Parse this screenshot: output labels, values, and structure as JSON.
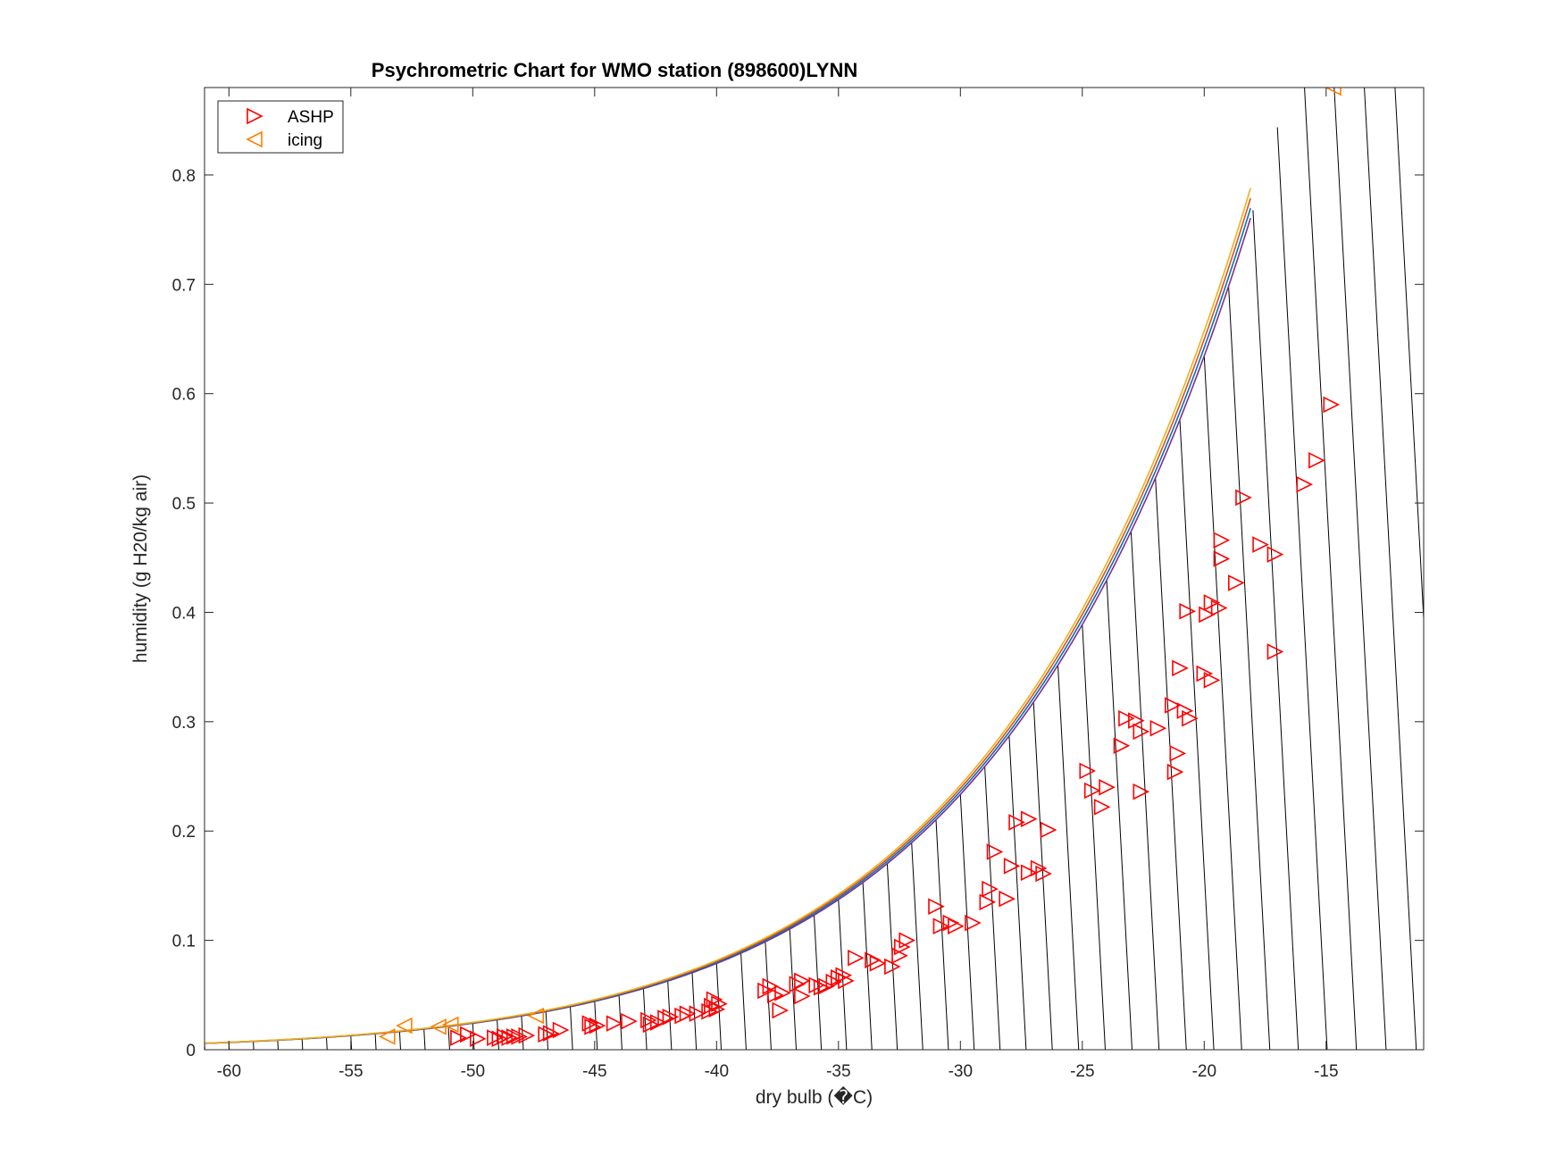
{
  "chart_data": {
    "type": "scatter",
    "title": "Psychrometric Chart for WMO station (898600)LYNN",
    "xlabel": "dry bulb (�C)",
    "ylabel": "humidity (g H20/kg air)",
    "xlim": [
      -61,
      -11
    ],
    "ylim": [
      0,
      0.88
    ],
    "xticks": [
      -60,
      -55,
      -50,
      -45,
      -40,
      -35,
      -30,
      -25,
      -20,
      -15
    ],
    "yticks": [
      0,
      0.1,
      0.2,
      0.3,
      0.4,
      0.5,
      0.6,
      0.7,
      0.8
    ],
    "xtick_labels": [
      "-60",
      "-55",
      "-50",
      "-45",
      "-40",
      "-35",
      "-30",
      "-25",
      "-20",
      "-15"
    ],
    "ytick_labels": [
      "0",
      "0.1",
      "0.2",
      "0.3",
      "0.4",
      "0.5",
      "0.6",
      "0.7",
      "0.8"
    ],
    "grid": false,
    "legend_position": "top-left",
    "saturation_curve": {
      "description_units": "humidity at saturation vs dry bulb",
      "colors": [
        "#7e2f8e",
        "#0072bd",
        "#d95319",
        "#edb120"
      ]
    },
    "series": [
      {
        "name": "ASHP",
        "marker": "triangle-right",
        "color": "#ff0000",
        "points": [
          [
            -50.6,
            0.011
          ],
          [
            -50.2,
            0.014
          ],
          [
            -49.8,
            0.01
          ],
          [
            -49.1,
            0.011
          ],
          [
            -48.9,
            0.01
          ],
          [
            -48.7,
            0.012
          ],
          [
            -48.5,
            0.011
          ],
          [
            -48.3,
            0.012
          ],
          [
            -48.1,
            0.012
          ],
          [
            -47.8,
            0.013
          ],
          [
            -47.0,
            0.014
          ],
          [
            -46.8,
            0.015
          ],
          [
            -46.4,
            0.018
          ],
          [
            -45.2,
            0.024
          ],
          [
            -45.1,
            0.021
          ],
          [
            -44.9,
            0.022
          ],
          [
            -44.2,
            0.024
          ],
          [
            -43.6,
            0.026
          ],
          [
            -42.8,
            0.027
          ],
          [
            -42.7,
            0.023
          ],
          [
            -42.4,
            0.025
          ],
          [
            -42.1,
            0.029
          ],
          [
            -41.9,
            0.03
          ],
          [
            -41.4,
            0.031
          ],
          [
            -41.2,
            0.033
          ],
          [
            -40.8,
            0.033
          ],
          [
            -40.3,
            0.035
          ],
          [
            -40.2,
            0.04
          ],
          [
            -40.1,
            0.046
          ],
          [
            -40.0,
            0.037
          ],
          [
            -39.9,
            0.042
          ],
          [
            -38.0,
            0.054
          ],
          [
            -37.8,
            0.058
          ],
          [
            -37.6,
            0.05
          ],
          [
            -37.4,
            0.036
          ],
          [
            -37.3,
            0.052
          ],
          [
            -36.7,
            0.06
          ],
          [
            -36.5,
            0.063
          ],
          [
            -36.5,
            0.049
          ],
          [
            -35.9,
            0.059
          ],
          [
            -35.7,
            0.057
          ],
          [
            -35.5,
            0.058
          ],
          [
            -35.2,
            0.062
          ],
          [
            -35.0,
            0.066
          ],
          [
            -34.8,
            0.068
          ],
          [
            -34.7,
            0.063
          ],
          [
            -34.3,
            0.084
          ],
          [
            -33.6,
            0.082
          ],
          [
            -33.4,
            0.079
          ],
          [
            -32.8,
            0.076
          ],
          [
            -32.5,
            0.086
          ],
          [
            -32.4,
            0.094
          ],
          [
            -32.2,
            0.1
          ],
          [
            -31.0,
            0.131
          ],
          [
            -30.8,
            0.113
          ],
          [
            -30.4,
            0.116
          ],
          [
            -30.2,
            0.113
          ],
          [
            -29.5,
            0.116
          ],
          [
            -28.9,
            0.135
          ],
          [
            -28.8,
            0.147
          ],
          [
            -28.6,
            0.181
          ],
          [
            -28.1,
            0.138
          ],
          [
            -27.9,
            0.168
          ],
          [
            -27.7,
            0.208
          ],
          [
            -27.2,
            0.211
          ],
          [
            -27.2,
            0.162
          ],
          [
            -26.8,
            0.166
          ],
          [
            -26.6,
            0.161
          ],
          [
            -26.4,
            0.201
          ],
          [
            -24.8,
            0.255
          ],
          [
            -24.6,
            0.237
          ],
          [
            -24.2,
            0.222
          ],
          [
            -24.0,
            0.24
          ],
          [
            -23.4,
            0.278
          ],
          [
            -23.2,
            0.303
          ],
          [
            -22.8,
            0.301
          ],
          [
            -22.6,
            0.291
          ],
          [
            -22.6,
            0.236
          ],
          [
            -21.9,
            0.294
          ],
          [
            -21.3,
            0.315
          ],
          [
            -21.2,
            0.254
          ],
          [
            -21.1,
            0.271
          ],
          [
            -21.0,
            0.349
          ],
          [
            -20.8,
            0.31
          ],
          [
            -20.7,
            0.401
          ],
          [
            -20.6,
            0.303
          ],
          [
            -20.0,
            0.344
          ],
          [
            -19.9,
            0.398
          ],
          [
            -19.7,
            0.409
          ],
          [
            -19.7,
            0.338
          ],
          [
            -19.4,
            0.404
          ],
          [
            -19.3,
            0.466
          ],
          [
            -19.3,
            0.449
          ],
          [
            -18.7,
            0.427
          ],
          [
            -18.4,
            0.505
          ],
          [
            -17.7,
            0.462
          ],
          [
            -17.1,
            0.453
          ],
          [
            -17.1,
            0.364
          ],
          [
            -15.9,
            0.517
          ],
          [
            -15.4,
            0.539
          ],
          [
            -14.8,
            0.59
          ]
        ]
      },
      {
        "name": "icing",
        "marker": "triangle-left",
        "color": "#ff7f00",
        "points": [
          [
            -53.5,
            0.012
          ],
          [
            -52.8,
            0.022
          ],
          [
            -51.4,
            0.021
          ],
          [
            -50.9,
            0.023
          ],
          [
            -47.4,
            0.031
          ],
          [
            -14.7,
            0.88
          ]
        ]
      }
    ]
  }
}
